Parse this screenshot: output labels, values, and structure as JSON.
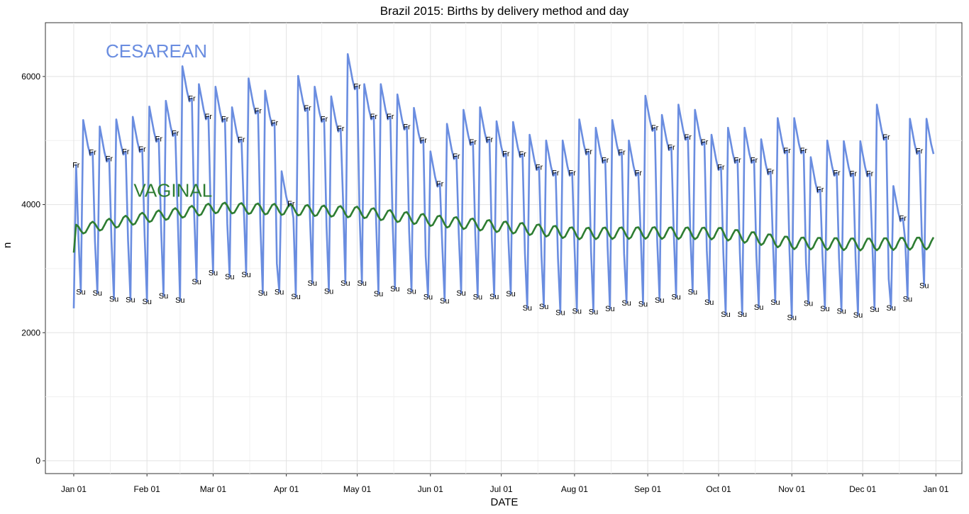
{
  "chart_data": {
    "type": "line",
    "title": "Brazil 2015: Births by delivery method and day",
    "xlabel": "DATE",
    "ylabel": "n",
    "ylim": [
      -200,
      6840
    ],
    "yticks": [
      0,
      2000,
      4000,
      6000
    ],
    "xlim": [
      "2014-12-20",
      "2016-01-12"
    ],
    "xticks": [
      {
        "date": "2015-01-01",
        "label": "Jan 01"
      },
      {
        "date": "2015-02-01",
        "label": "Feb 01"
      },
      {
        "date": "2015-03-01",
        "label": "Mar 01"
      },
      {
        "date": "2015-04-01",
        "label": "Apr 01"
      },
      {
        "date": "2015-05-01",
        "label": "May 01"
      },
      {
        "date": "2015-06-01",
        "label": "Jun 01"
      },
      {
        "date": "2015-07-01",
        "label": "Jul 01"
      },
      {
        "date": "2015-08-01",
        "label": "Aug 01"
      },
      {
        "date": "2015-09-01",
        "label": "Sep 01"
      },
      {
        "date": "2015-10-01",
        "label": "Oct 01"
      },
      {
        "date": "2015-11-01",
        "label": "Nov 01"
      },
      {
        "date": "2015-12-01",
        "label": "Dec 01"
      },
      {
        "date": "2016-01-01",
        "label": "Jan 01"
      }
    ],
    "grid": true,
    "series": [
      {
        "name": "CESAREAN",
        "color": "#6a8de0",
        "label_position": {
          "date": "2015-02-05",
          "value": 6300
        },
        "friday": [
          4620,
          4820,
          4720,
          4830,
          4870,
          5030,
          5120,
          5660,
          5380,
          5340,
          5020,
          5470,
          5280,
          4020,
          5510,
          5340,
          5190,
          5850,
          5380,
          5380,
          5220,
          5010,
          4330,
          4760,
          4980,
          5020,
          4800,
          4790,
          4590,
          4500,
          4500,
          4830,
          4700,
          4820,
          4500,
          5200,
          4900,
          5060,
          4980,
          4590,
          4700,
          4700,
          4520,
          4850,
          4850,
          4240,
          4500,
          4490,
          4490,
          5060,
          3790,
          4840
        ],
        "sunday": [
          2640,
          2620,
          2530,
          2520,
          2490,
          2580,
          2510,
          2800,
          2940,
          2880,
          2910,
          2620,
          2640,
          2570,
          2780,
          2650,
          2780,
          2780,
          2610,
          2690,
          2650,
          2560,
          2500,
          2620,
          2560,
          2570,
          2610,
          2390,
          2410,
          2320,
          2340,
          2330,
          2380,
          2470,
          2450,
          2510,
          2560,
          2640,
          2480,
          2290,
          2290,
          2400,
          2480,
          2240,
          2460,
          2380,
          2340,
          2280,
          2370,
          2390,
          2530,
          2740
        ]
      },
      {
        "name": "VAGINAL",
        "color": "#2e7d32",
        "label_position": {
          "date": "2015-02-12",
          "value": 4120
        },
        "monthly": [
          3600,
          3800,
          3950,
          3920,
          3880,
          3750,
          3650,
          3550,
          3560,
          3550,
          3400,
          3380,
          3400
        ]
      }
    ],
    "day_labels": [
      "Fr",
      "Su"
    ]
  }
}
